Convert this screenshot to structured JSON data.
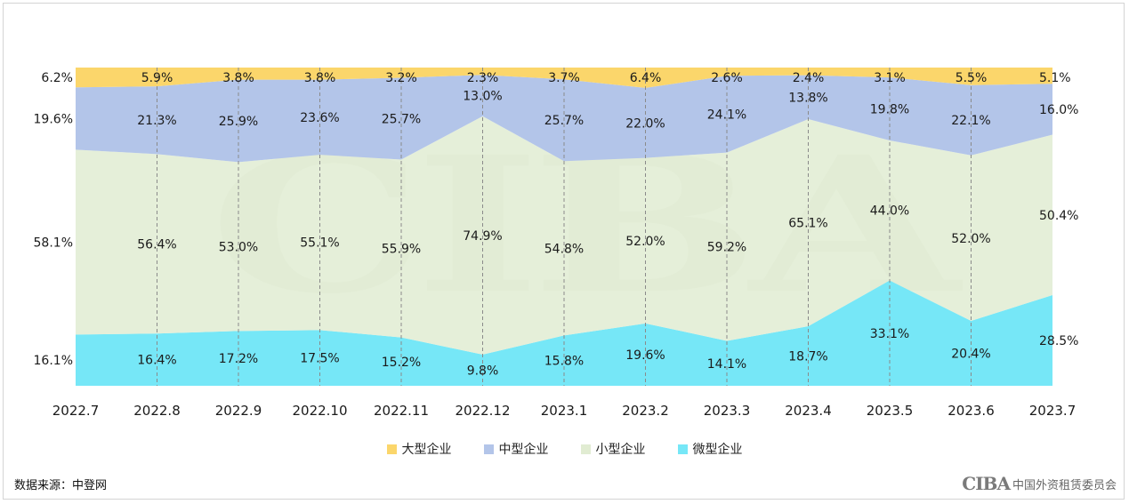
{
  "chart_data": {
    "type": "area",
    "stacked": "percent",
    "categories": [
      "2022.7",
      "2022.8",
      "2022.9",
      "2022.10",
      "2022.11",
      "2022.12",
      "2023.1",
      "2023.2",
      "2023.3",
      "2023.4",
      "2023.5",
      "2023.6",
      "2023.7"
    ],
    "series": [
      {
        "name": "微型企业",
        "color": "#76e7f7",
        "values": [
          16.1,
          16.4,
          17.2,
          17.5,
          15.2,
          9.8,
          15.8,
          19.6,
          14.1,
          18.7,
          33.1,
          20.4,
          28.5
        ]
      },
      {
        "name": "小型企业",
        "color": "#e1ecd2",
        "values": [
          58.1,
          56.4,
          53.0,
          55.1,
          55.9,
          74.9,
          54.8,
          52.0,
          59.2,
          65.1,
          44.0,
          52.0,
          50.4
        ]
      },
      {
        "name": "中型企业",
        "color": "#b3c5e9",
        "values": [
          19.6,
          21.3,
          25.9,
          23.6,
          25.7,
          13.0,
          25.7,
          22.0,
          24.1,
          13.8,
          19.8,
          22.1,
          16.0
        ]
      },
      {
        "name": "大型企业",
        "color": "#fbd66b",
        "values": [
          6.2,
          5.9,
          3.8,
          3.8,
          3.2,
          2.3,
          3.7,
          6.4,
          2.6,
          2.4,
          3.1,
          5.5,
          5.1
        ]
      }
    ],
    "legend_order": [
      "大型企业",
      "中型企业",
      "小型企业",
      "微型企业"
    ],
    "legend_position": "bottom",
    "ylim": [
      0,
      100
    ],
    "grid": "vertical-dashed"
  },
  "source_text": "数据来源：中登网",
  "watermark_text": "CIBA",
  "logo": {
    "mark": "CIBA",
    "text": "中国外资租赁委员会"
  }
}
